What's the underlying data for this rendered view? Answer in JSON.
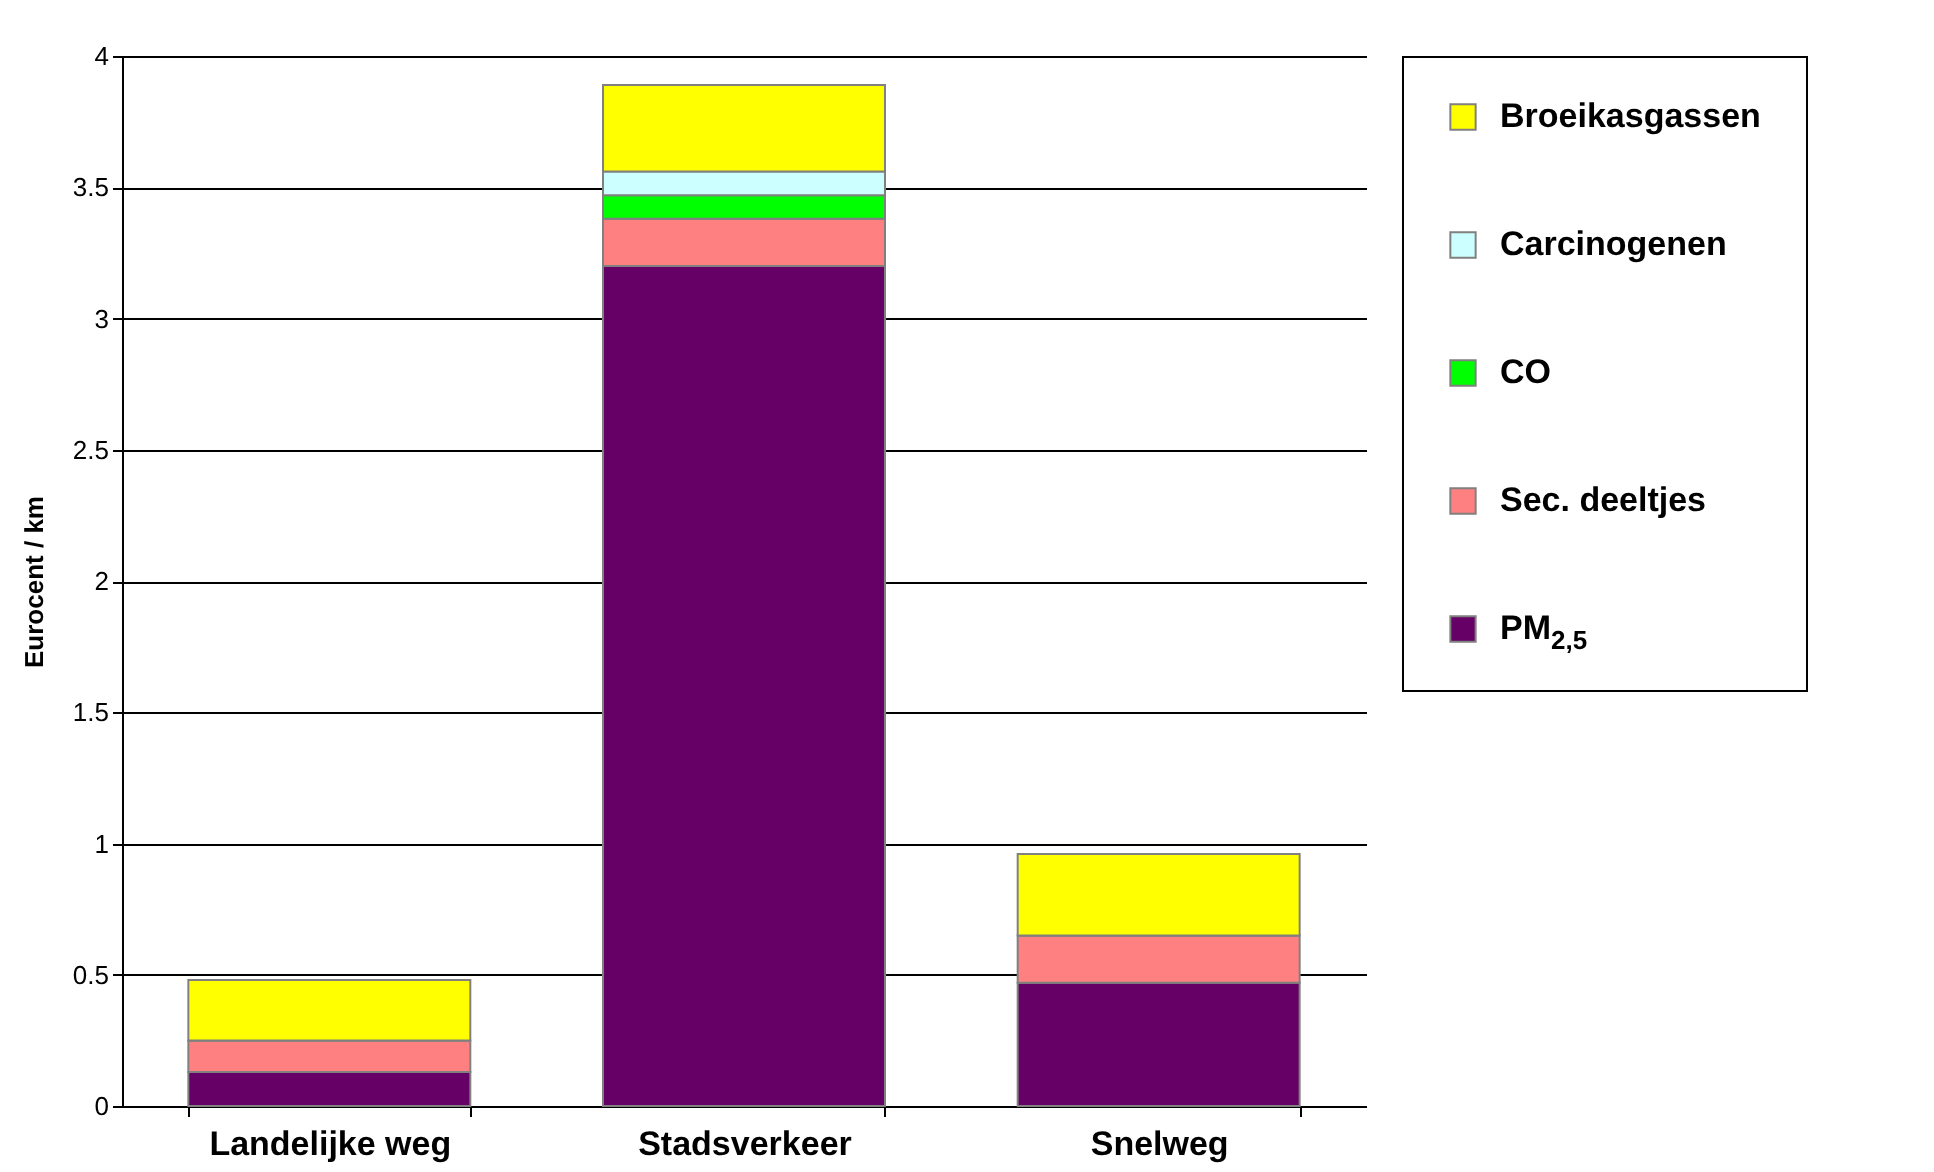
{
  "chart_data": {
    "type": "bar",
    "stacked": true,
    "ylabel": "Eurocent / km",
    "categories": [
      "Landelijke weg",
      "Stadsverkeer",
      "Snelweg"
    ],
    "series": [
      {
        "name": "PM$_{2,5}$",
        "color": "#660066",
        "values": [
          0.13,
          3.2,
          0.47
        ]
      },
      {
        "name": "Sec. deeltjes",
        "color": "#ff8080",
        "values": [
          0.12,
          0.18,
          0.18
        ]
      },
      {
        "name": "CO",
        "color": "#00ff00",
        "values": [
          0,
          0.09,
          0
        ]
      },
      {
        "name": "Carcinogenen",
        "color": "#ccffff",
        "values": [
          null,
          0.09,
          null
        ]
      },
      {
        "name": "Broeikasgassen",
        "color": "#ffff00",
        "values": [
          0.23,
          0.33,
          0.31
        ]
      }
    ],
    "ylim": [
      0,
      4
    ],
    "yticks": [
      0,
      0.5,
      1,
      1.5,
      2,
      2.5,
      3,
      3.5,
      4
    ],
    "grid": "y",
    "legend": "right"
  }
}
